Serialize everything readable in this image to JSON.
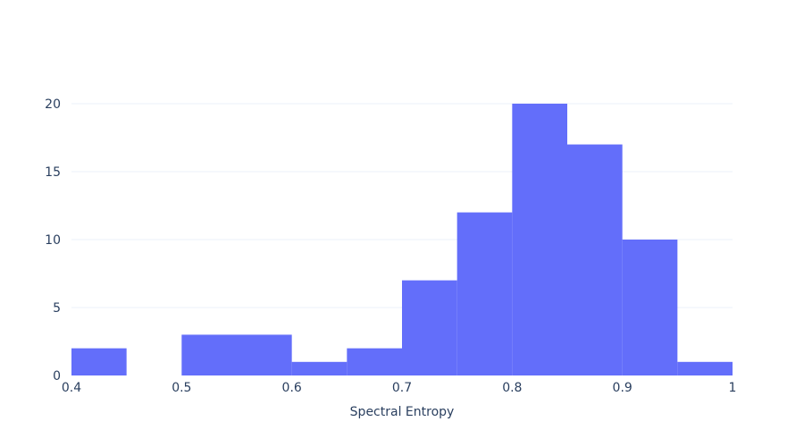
{
  "chart_data": {
    "type": "bar",
    "subtype": "histogram",
    "title": "",
    "xlabel": "Spectral Entropy",
    "ylabel": "",
    "xlim": [
      0.4,
      1.0
    ],
    "ylim": [
      0,
      21.05
    ],
    "x_ticks": [
      "0.4",
      "0.5",
      "0.6",
      "0.7",
      "0.8",
      "0.9",
      "1"
    ],
    "y_ticks": [
      "0",
      "5",
      "10",
      "15",
      "20"
    ],
    "bin_width": 0.05,
    "bins": [
      {
        "x0": 0.4,
        "x1": 0.45,
        "count": 2
      },
      {
        "x0": 0.45,
        "x1": 0.5,
        "count": 0
      },
      {
        "x0": 0.5,
        "x1": 0.55,
        "count": 3
      },
      {
        "x0": 0.55,
        "x1": 0.6,
        "count": 3
      },
      {
        "x0": 0.6,
        "x1": 0.65,
        "count": 1
      },
      {
        "x0": 0.65,
        "x1": 0.7,
        "count": 2
      },
      {
        "x0": 0.7,
        "x1": 0.75,
        "count": 7
      },
      {
        "x0": 0.75,
        "x1": 0.8,
        "count": 12
      },
      {
        "x0": 0.8,
        "x1": 0.85,
        "count": 20
      },
      {
        "x0": 0.85,
        "x1": 0.9,
        "count": 17
      },
      {
        "x0": 0.9,
        "x1": 0.95,
        "count": 10
      },
      {
        "x0": 0.95,
        "x1": 1.0,
        "count": 1
      }
    ],
    "grid": "horizontal",
    "legend": "none",
    "colors": {
      "bar": "#636efa",
      "grid": "#ebf0f8",
      "text": "#2a3f5f",
      "background": "#ffffff"
    }
  }
}
